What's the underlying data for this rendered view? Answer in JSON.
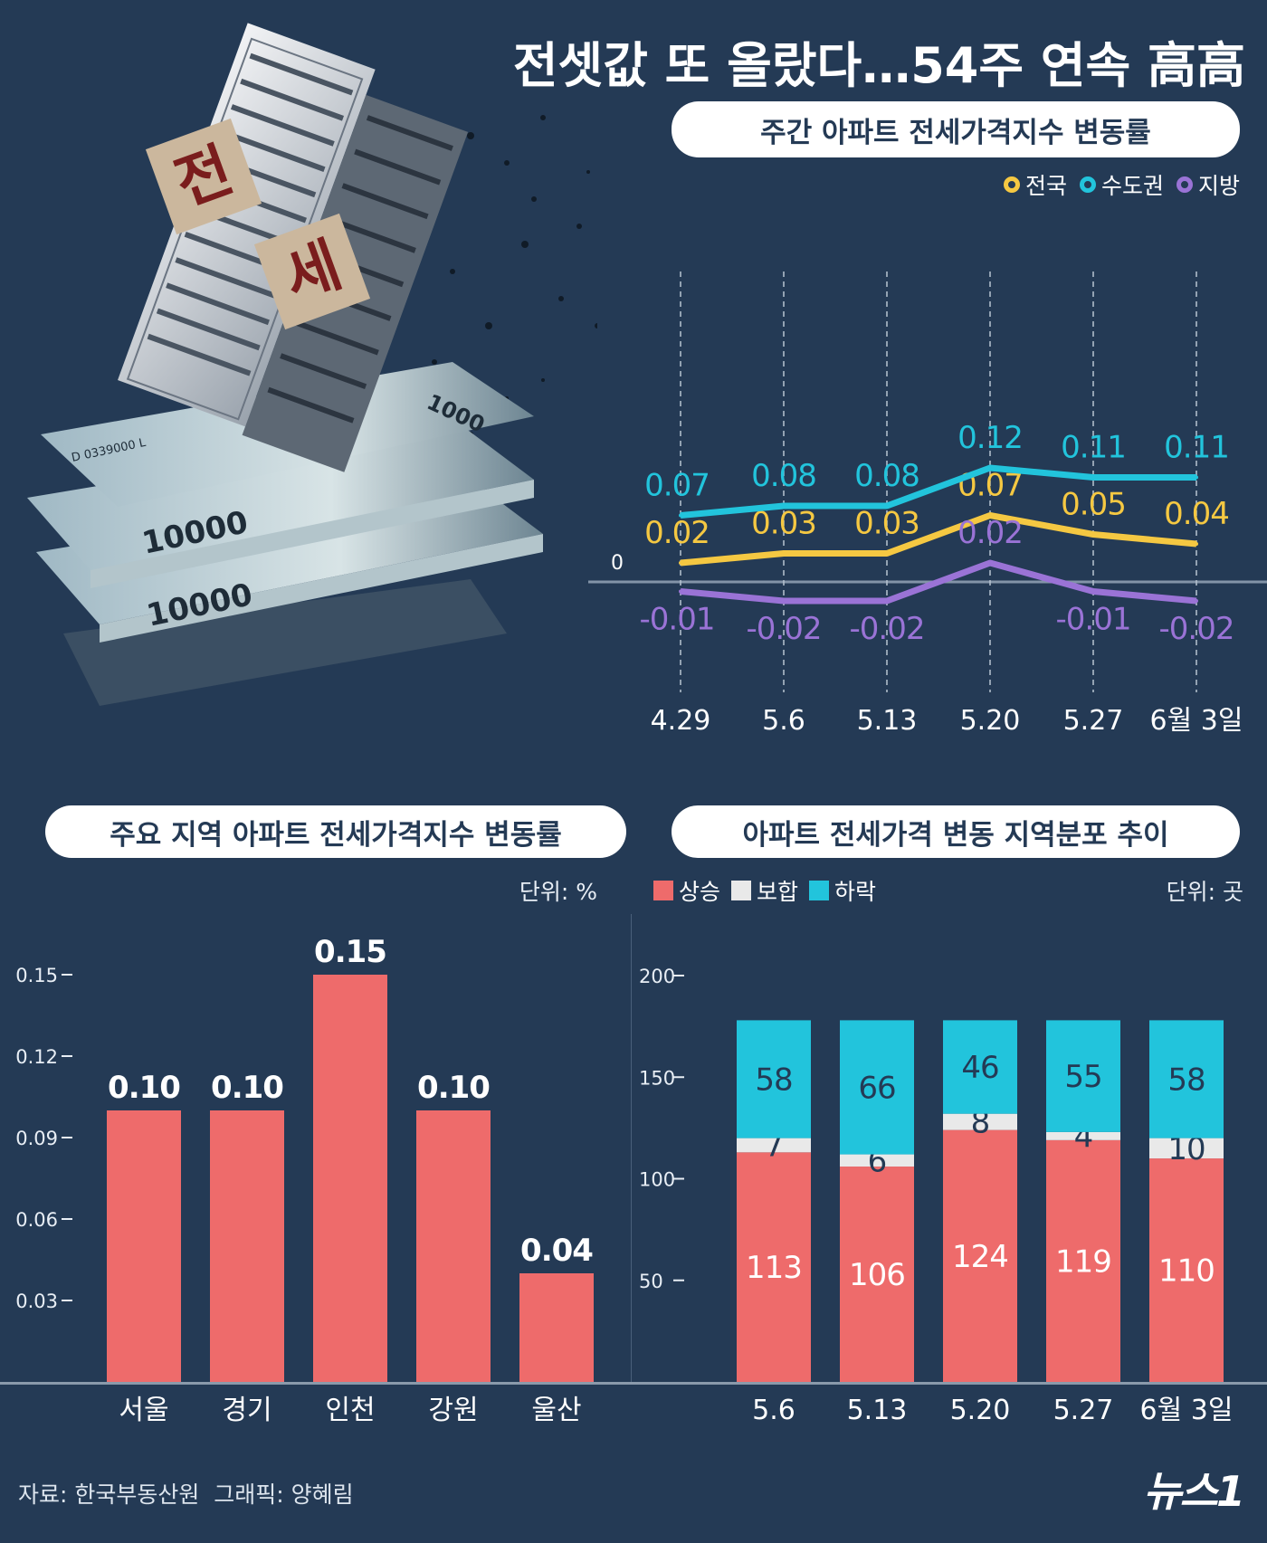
{
  "title": "전셋값 또 올랐다…54주 연속 高高",
  "colors": {
    "background": "#243a55",
    "national": "#f5c842",
    "capital": "#22c4dc",
    "region": "#9a73d6",
    "bar": "#ee6b6b",
    "rise": "#ee6b6b",
    "flat": "#e9e9e9",
    "fall": "#22c4dc"
  },
  "illustration": {
    "sign1": "전",
    "sign2": "세",
    "bill1": "10000",
    "bill2": "10000",
    "bill3": "1000",
    "serial": "D 0339000 L"
  },
  "chart_data": [
    {
      "type": "line",
      "title": "주간 아파트 전세가격지수 변동률",
      "x": [
        "4.29",
        "5.6",
        "5.13",
        "5.20",
        "5.27",
        "6월 3일"
      ],
      "zero_label": "0",
      "series": [
        {
          "name": "전국",
          "values": [
            0.02,
            0.03,
            0.03,
            0.07,
            0.05,
            0.04
          ],
          "labels": [
            "0.02",
            "0.03",
            "0.03",
            "0.07",
            "0.05",
            "0.04"
          ]
        },
        {
          "name": "수도권",
          "values": [
            0.07,
            0.08,
            0.08,
            0.12,
            0.11,
            0.11
          ],
          "labels": [
            "0.07",
            "0.08",
            "0.08",
            "0.12",
            "0.11",
            "0.11"
          ]
        },
        {
          "name": "지방",
          "values": [
            -0.01,
            -0.02,
            -0.02,
            0.02,
            -0.01,
            -0.02
          ],
          "labels": [
            "-0.01",
            "-0.02",
            "-0.02",
            "0.02",
            "-0.01",
            "-0.02"
          ]
        }
      ],
      "legend_position": "top-right"
    },
    {
      "type": "bar",
      "title": "주요 지역 아파트 전세가격지수 변동률",
      "unit": "단위: %",
      "categories": [
        "서울",
        "경기",
        "인천",
        "강원",
        "울산"
      ],
      "values": [
        0.1,
        0.1,
        0.15,
        0.1,
        0.04
      ],
      "labels": [
        "0.10",
        "0.10",
        "0.15",
        "0.10",
        "0.04"
      ],
      "yticks": [
        "0.03",
        "0.06",
        "0.09",
        "0.12",
        "0.15"
      ],
      "ylim": [
        0,
        0.16
      ]
    },
    {
      "type": "bar",
      "stacked": true,
      "title": "아파트 전세가격 변동 지역분포 추이",
      "unit": "단위: 곳",
      "categories": [
        "5.6",
        "5.13",
        "5.20",
        "5.27",
        "6월 3일"
      ],
      "series": [
        {
          "name": "상승",
          "values": [
            113,
            106,
            124,
            119,
            110
          ]
        },
        {
          "name": "보합",
          "values": [
            7,
            6,
            8,
            4,
            10
          ]
        },
        {
          "name": "하락",
          "values": [
            58,
            66,
            46,
            55,
            58
          ]
        }
      ],
      "yticks": [
        "50",
        "100",
        "150",
        "200"
      ],
      "ylim": [
        0,
        205
      ]
    }
  ],
  "footer": {
    "source": "자료: 한국부동산원  그래픽: 양혜림",
    "logo": "뉴스1"
  }
}
